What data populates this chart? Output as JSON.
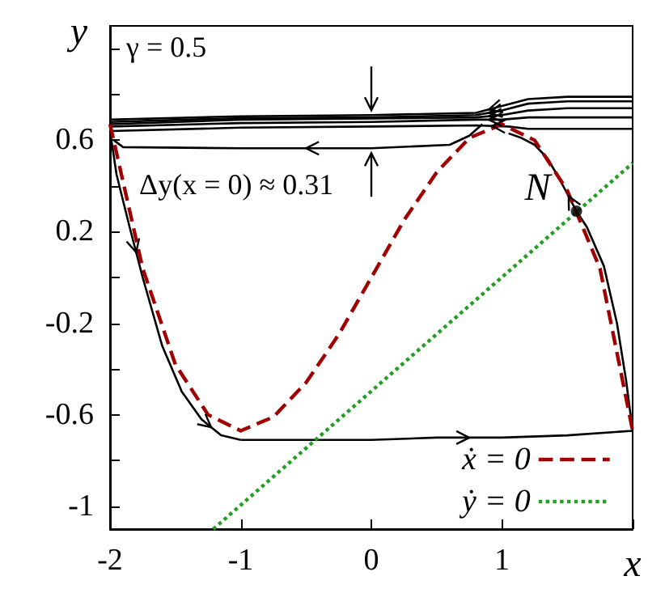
{
  "chart_data": {
    "type": "line",
    "xlabel": "x",
    "ylabel": "y",
    "xlim": [
      -2,
      2
    ],
    "ylim": [
      -1.1,
      1.1
    ],
    "xticks": [
      -2,
      -1,
      0,
      1,
      {
        "value": 2,
        "label": null
      }
    ],
    "yticks": [
      {
        "value": -1,
        "label": "-1"
      },
      {
        "value": -0.8,
        "label": null
      },
      {
        "value": -0.6,
        "label": "-0.6"
      },
      {
        "value": -0.4,
        "label": null
      },
      {
        "value": -0.2,
        "label": "-0.2"
      },
      {
        "value": 0,
        "label": null
      },
      {
        "value": 0.2,
        "label": "0.2"
      },
      {
        "value": 0.4,
        "label": null
      },
      {
        "value": 0.6,
        "label": "0.6"
      },
      {
        "value": 0.8,
        "label": null
      },
      {
        "value": 1,
        "label": null
      }
    ],
    "grid": false,
    "legend": "bottom right",
    "marker": "none",
    "annotations": [
      "γ = 0.5",
      "Δy(x = 0) ≈ 0.31",
      {
        "text": "N",
        "x": 1.57,
        "y": 0.29
      }
    ],
    "series": [
      {
        "color": "#000000",
        "line_style": "solid",
        "x": [
          -2,
          -1.95,
          -1.85,
          -1.75,
          -1.6,
          -1.45,
          -1.3,
          -1.15,
          -1.0
        ],
        "values": [
          0.64,
          0.45,
          0.22,
          0.0,
          -0.3,
          -0.5,
          -0.62,
          -0.69,
          -0.71
        ]
      },
      {
        "color": "#000000",
        "line_style": "solid",
        "x": [
          -1.0,
          -0.5,
          0,
          0.5,
          1,
          1.5,
          2
        ],
        "values": [
          -0.71,
          -0.71,
          -0.71,
          -0.7,
          -0.7,
          -0.69,
          -0.67
        ]
      },
      {
        "color": "#000000",
        "line_style": "solid",
        "x": [
          2,
          1.95,
          1.88,
          1.78,
          1.65,
          1.57,
          1.45,
          1.35,
          1.25,
          1.15,
          1.05
        ],
        "values": [
          -0.67,
          -0.45,
          -0.2,
          0.05,
          0.22,
          0.29,
          0.42,
          0.52,
          0.58,
          0.61,
          0.63
        ]
      },
      {
        "color": "#000000",
        "line_style": "solid",
        "x": [
          2,
          1.5,
          1.2,
          1.0,
          0.8,
          0,
          -1,
          -2
        ],
        "values": [
          0.79,
          0.79,
          0.78,
          0.75,
          0.72,
          0.71,
          0.705,
          0.69
        ]
      },
      {
        "color": "#000000",
        "line_style": "solid",
        "x": [
          2,
          1.5,
          1.2,
          1.0,
          0.8,
          0,
          -1,
          -2
        ],
        "values": [
          0.77,
          0.77,
          0.76,
          0.73,
          0.71,
          0.7,
          0.697,
          0.68
        ]
      },
      {
        "color": "#000000",
        "line_style": "solid",
        "x": [
          2,
          1.5,
          1.2,
          1.0,
          0.8,
          0,
          -1,
          -2
        ],
        "values": [
          0.74,
          0.74,
          0.73,
          0.71,
          0.7,
          0.695,
          0.69,
          0.67
        ]
      },
      {
        "color": "#000000",
        "line_style": "solid",
        "x": [
          2,
          1.5,
          1.2,
          1.0,
          0.8,
          0,
          -1,
          -2
        ],
        "values": [
          0.7,
          0.7,
          0.7,
          0.69,
          0.69,
          0.68,
          0.675,
          0.66
        ]
      },
      {
        "color": "#000000",
        "line_style": "solid",
        "x": [
          2,
          1.5,
          1.2,
          1.05,
          0.8,
          0,
          -1,
          -2
        ],
        "values": [
          0.65,
          0.65,
          0.65,
          0.66,
          0.665,
          0.66,
          0.655,
          0.64
        ]
      },
      {
        "color": "#000000",
        "line_style": "solid",
        "x": [
          0.85,
          0.75,
          0.6,
          0,
          -1,
          -1.9,
          -1.97
        ],
        "values": [
          0.67,
          0.62,
          0.58,
          0.565,
          0.565,
          0.57,
          0.6
        ]
      },
      {
        "name": "ẋ = 0",
        "color": "#a00000",
        "line_style": "dashed",
        "x": [
          -2,
          -1.75,
          -1.5,
          -1.25,
          -1,
          -0.75,
          -0.5,
          -0.25,
          0,
          0.25,
          0.5,
          0.75,
          1,
          1.25,
          1.5,
          1.75,
          2
        ],
        "values": [
          0.67,
          0.04,
          -0.38,
          -0.6,
          -0.67,
          -0.61,
          -0.46,
          -0.25,
          0,
          0.25,
          0.46,
          0.61,
          0.67,
          0.6,
          0.38,
          0.04,
          -0.67
        ]
      },
      {
        "name": "ẏ = 0",
        "color": "#22a022",
        "line_style": "dotted",
        "x": [
          -1.21,
          2
        ],
        "values": [
          -1.1,
          0.5
        ]
      },
      {
        "type": "scatter",
        "marker": "circle",
        "color": "#000000",
        "x": [
          1.57
        ],
        "values": [
          0.29
        ]
      }
    ]
  }
}
